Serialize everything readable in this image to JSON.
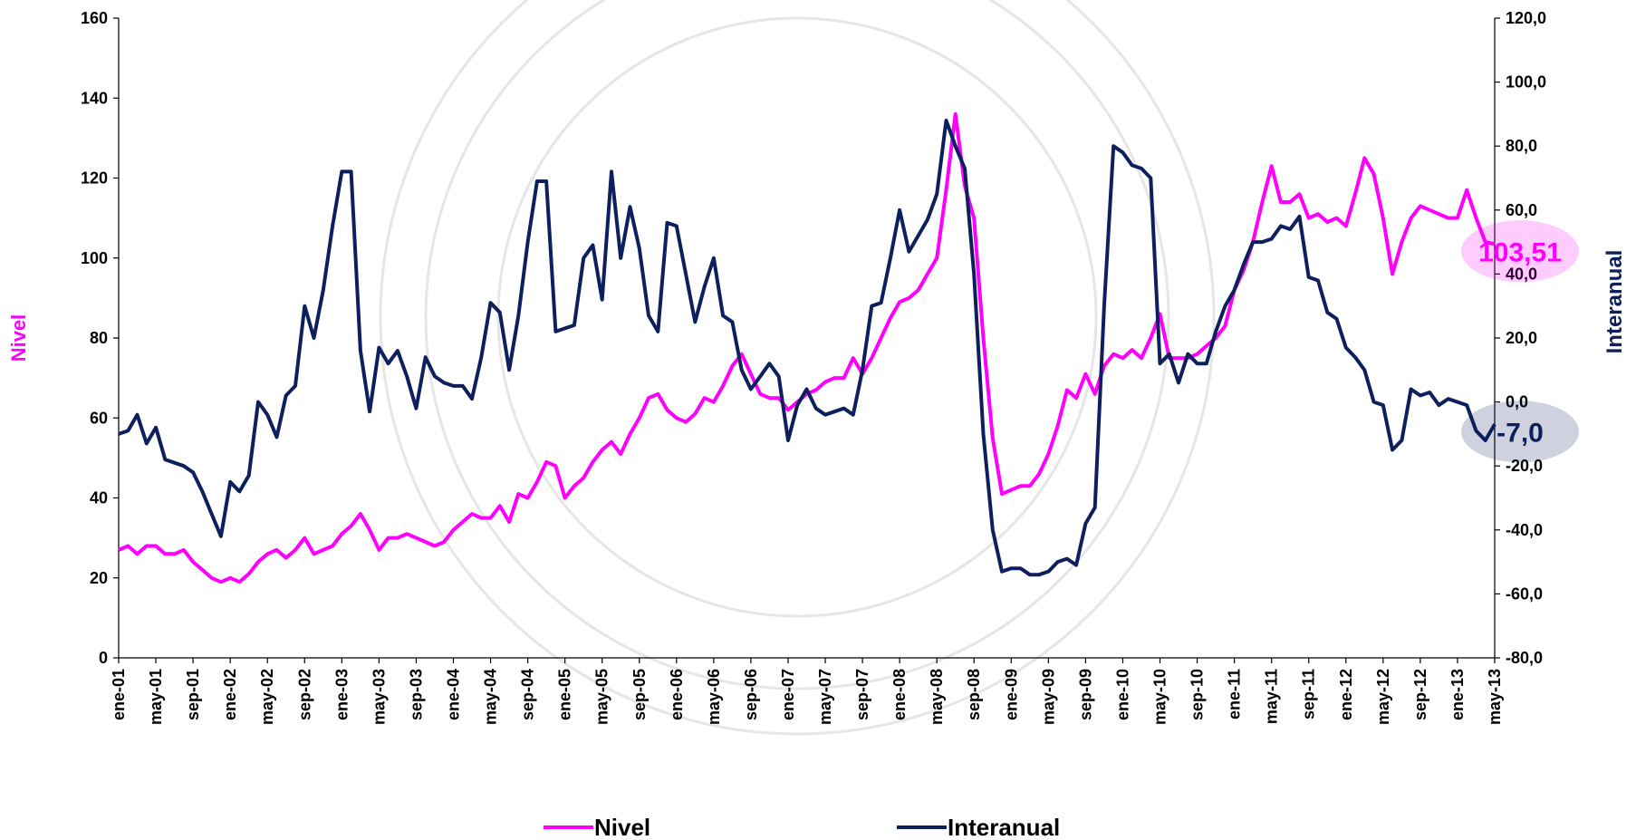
{
  "chart_data": {
    "type": "line",
    "categories": [
      "ene-01",
      null,
      null,
      null,
      "may-01",
      null,
      null,
      null,
      "sep-01",
      null,
      null,
      null,
      "ene-02",
      null,
      null,
      null,
      "may-02",
      null,
      null,
      null,
      "sep-02",
      null,
      null,
      null,
      "ene-03",
      null,
      null,
      null,
      "may-03",
      null,
      null,
      null,
      "sep-03",
      null,
      null,
      null,
      "ene-04",
      null,
      null,
      null,
      "may-04",
      null,
      null,
      null,
      "sep-04",
      null,
      null,
      null,
      "ene-05",
      null,
      null,
      null,
      "may-05",
      null,
      null,
      null,
      "sep-05",
      null,
      null,
      null,
      "ene-06",
      null,
      null,
      null,
      "may-06",
      null,
      null,
      null,
      "sep-06",
      null,
      null,
      null,
      "ene-07",
      null,
      null,
      null,
      "may-07",
      null,
      null,
      null,
      "sep-07",
      null,
      null,
      null,
      "ene-08",
      null,
      null,
      null,
      "may-08",
      null,
      null,
      null,
      "sep-08",
      null,
      null,
      null,
      "ene-09",
      null,
      null,
      null,
      "may-09",
      null,
      null,
      null,
      "sep-09",
      null,
      null,
      null,
      "ene-10",
      null,
      null,
      null,
      "may-10",
      null,
      null,
      null,
      "sep-10",
      null,
      null,
      null,
      "ene-11",
      null,
      null,
      null,
      "may-11",
      null,
      null,
      null,
      "sep-11",
      null,
      null,
      null,
      "ene-12",
      null,
      null,
      null,
      "may-12",
      null,
      null,
      null,
      "sep-12",
      null,
      null,
      null,
      "ene-13",
      null,
      null,
      null,
      "may-13"
    ],
    "series": [
      {
        "name": "Nivel",
        "color": "#ff00ff",
        "axis": "y",
        "end_label": "103,51",
        "values": [
          27,
          28,
          26,
          28,
          28,
          26,
          26,
          27,
          24,
          22,
          20,
          19,
          20,
          19,
          21,
          24,
          26,
          27,
          25,
          27,
          30,
          26,
          27,
          28,
          31,
          33,
          36,
          32,
          27,
          30,
          30,
          31,
          30,
          29,
          28,
          29,
          32,
          34,
          36,
          35,
          35,
          38,
          34,
          41,
          40,
          44,
          49,
          48,
          40,
          43,
          45,
          49,
          52,
          54,
          51,
          56,
          60,
          65,
          66,
          62,
          60,
          59,
          61,
          65,
          64,
          68,
          73,
          76,
          71,
          66,
          65,
          65,
          62,
          64,
          66,
          67,
          69,
          70,
          70,
          75,
          71,
          75,
          80,
          85,
          89,
          90,
          92,
          96,
          100,
          117,
          136,
          118,
          110,
          80,
          55,
          41,
          42,
          43,
          43,
          46,
          51,
          58,
          67,
          65,
          71,
          66,
          73,
          76,
          75,
          77,
          75,
          80,
          86,
          75,
          75,
          75,
          76,
          78,
          80,
          83,
          92,
          97,
          104,
          114,
          123,
          114,
          114,
          116,
          110,
          111,
          109,
          110,
          108,
          116,
          125,
          121,
          110,
          96,
          104,
          110,
          113,
          112,
          111,
          110,
          110,
          117,
          110,
          104,
          103.51
        ]
      },
      {
        "name": "Interanual",
        "color": "#0d1f5c",
        "axis": "y2",
        "end_label": "-7,0",
        "values": [
          -10,
          -9,
          -4,
          -13,
          -8,
          -18,
          -19,
          -20,
          -22,
          -28,
          -35,
          -42,
          -25,
          -28,
          -23,
          0,
          -4,
          -11,
          2,
          5,
          30,
          20,
          35,
          55,
          72,
          72,
          16,
          -3,
          17,
          12,
          16,
          8,
          -2,
          14,
          8,
          6,
          5,
          5,
          1,
          14,
          31,
          28,
          10,
          27,
          50,
          69,
          69,
          22,
          23,
          24,
          45,
          49,
          32,
          72,
          45,
          61,
          48,
          27,
          22,
          56,
          55,
          40,
          25,
          36,
          45,
          27,
          25,
          10,
          4,
          8,
          12,
          8,
          -12,
          -1,
          4,
          -2,
          -4,
          -3,
          -2,
          -4,
          10,
          30,
          31,
          45,
          60,
          47,
          52,
          57,
          65,
          88,
          80,
          73,
          40,
          -10,
          -40,
          -53,
          -52,
          -52,
          -54,
          -54,
          -53,
          -50,
          -49,
          -51,
          -38,
          -33,
          30,
          80,
          78,
          74,
          73,
          70,
          12,
          15,
          6,
          15,
          12,
          12,
          22,
          30,
          35,
          43,
          50,
          50,
          51,
          55,
          54,
          58,
          39,
          38,
          28,
          26,
          17,
          14,
          10,
          0,
          -1,
          -15,
          -12,
          4,
          2,
          3,
          -1,
          1,
          0,
          -1,
          -9,
          -12,
          -7
        ]
      }
    ],
    "ylabel": "Nivel",
    "y2label": "Interanual",
    "ylim": [
      0,
      160
    ],
    "yticks": [
      0,
      20,
      40,
      60,
      80,
      100,
      120,
      140,
      160
    ],
    "y2lim": [
      -80,
      120
    ],
    "y2ticks": [
      {
        "value": -80,
        "label": "-80,0"
      },
      {
        "value": -60,
        "label": "-60,0"
      },
      {
        "value": -40,
        "label": "-40,0"
      },
      {
        "value": -20,
        "label": "-20,0"
      },
      {
        "value": 0,
        "label": "0,0"
      },
      {
        "value": 20,
        "label": "20,0"
      },
      {
        "value": 40,
        "label": "40,0"
      },
      {
        "value": 60,
        "label": "60,0"
      },
      {
        "value": 80,
        "label": "80,0"
      },
      {
        "value": 100,
        "label": "100,0"
      },
      {
        "value": 120,
        "label": "120,0"
      }
    ],
    "grid": false,
    "legend": "bottom"
  }
}
